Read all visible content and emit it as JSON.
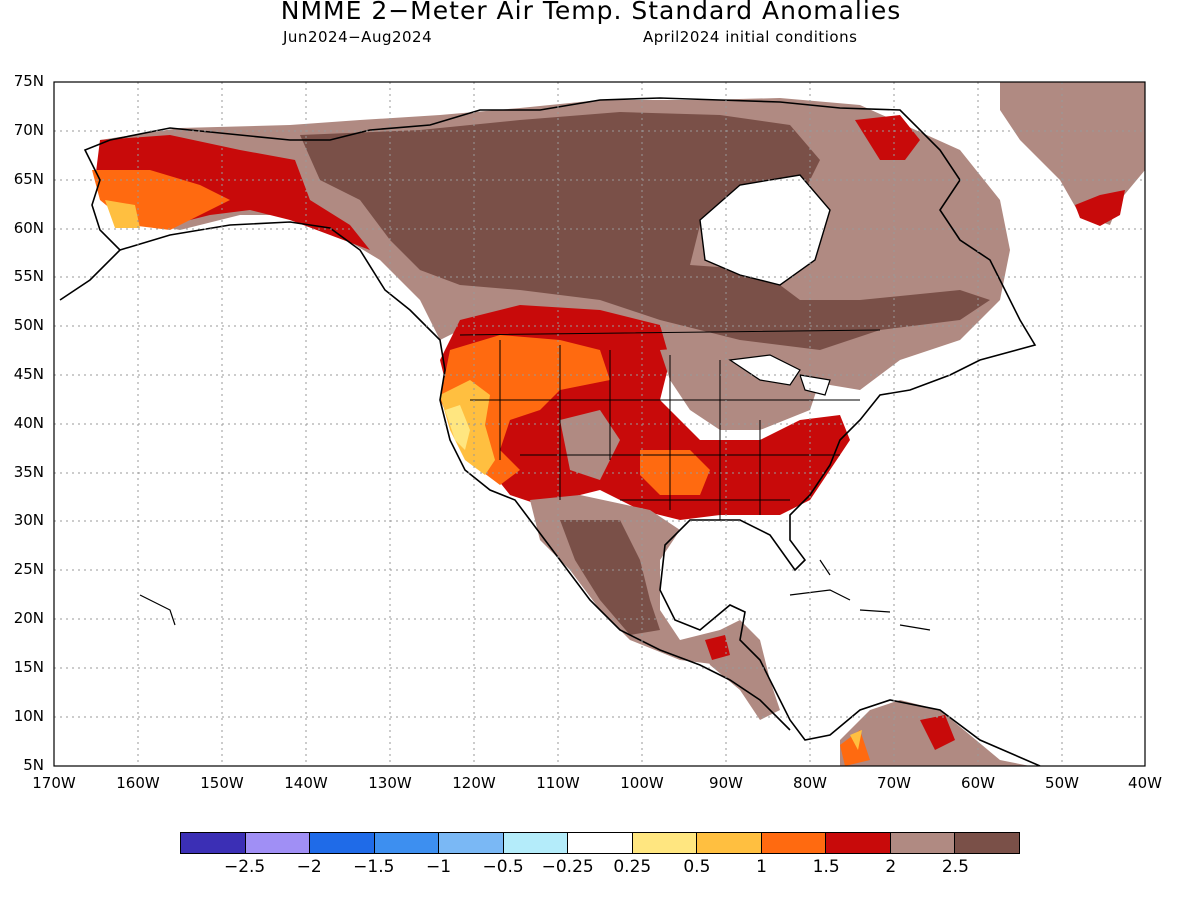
{
  "title": "NMME 2−Meter Air Temp. Standard Anomalies",
  "period": "Jun2024−Aug2024",
  "initial_conditions": "April2024 initial conditions",
  "lat_labels": [
    "75N",
    "70N",
    "65N",
    "60N",
    "55N",
    "50N",
    "45N",
    "40N",
    "35N",
    "30N",
    "25N",
    "20N",
    "15N",
    "10N",
    "5N"
  ],
  "lon_labels": [
    "170W",
    "160W",
    "150W",
    "140W",
    "130W",
    "120W",
    "110W",
    "100W",
    "90W",
    "80W",
    "70W",
    "60W",
    "50W",
    "40W"
  ],
  "colorbar": {
    "colors": [
      "#3b2fb5",
      "#a08ff5",
      "#1f6be8",
      "#3d8ff0",
      "#7ab8f5",
      "#b4ecfa",
      "#ffffff",
      "#ffe680",
      "#ffbf40",
      "#ff6a10",
      "#c80a0a",
      "#b08a82",
      "#7a5048"
    ],
    "labels": [
      "−2.5",
      "−2",
      "−1.5",
      "−1",
      "−0.5",
      "−0.25",
      "0.25",
      "0.5",
      "1",
      "1.5",
      "2",
      "2.5"
    ]
  }
}
